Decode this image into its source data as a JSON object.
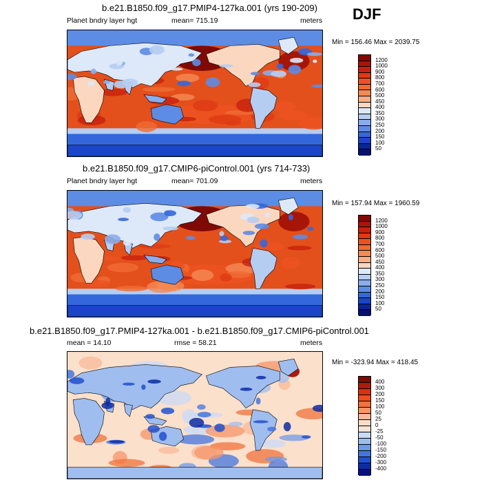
{
  "season": "DJF",
  "panels": [
    {
      "title": "b.e21.B1850.f09_g17.PMIP4-127ka.001 (yrs 190-209)",
      "left_label": "Planet bndry layer hgt",
      "center_label": "mean= 715.19",
      "right_label": "meters",
      "minmax": "Min = 156.46 Max = 2039.75",
      "palette": "abs",
      "levels": [
        "1200",
        "1000",
        "900",
        "800",
        "700",
        "600",
        "500",
        "450",
        "400",
        "350",
        "300",
        "250",
        "200",
        "150",
        "100",
        "50"
      ]
    },
    {
      "title": "b.e21.B1850.f09_g17.CMIP6-piControl.001 (yrs 714-733)",
      "left_label": "Planet bndry layer hgt",
      "center_label": "mean= 701.09",
      "right_label": "meters",
      "minmax": "Min = 157.94 Max = 1960.59",
      "palette": "abs",
      "levels": [
        "1200",
        "1000",
        "900",
        "800",
        "700",
        "600",
        "500",
        "450",
        "400",
        "350",
        "300",
        "250",
        "200",
        "150",
        "100",
        "50"
      ]
    },
    {
      "title": "b.e21.B1850.f09_g17.PMIP4-127ka.001 - b.e21.B1850.f09_g17.CMIP6-piControl.001",
      "left_label": "mean =  14.10",
      "center_label": "rmse =  58.21",
      "right_label": "meters",
      "minmax": "Min = -323.94 Max = 418.45",
      "palette": "diff",
      "levels": [
        "400",
        "300",
        "200",
        "150",
        "100",
        "50",
        "25",
        "0",
        "-25",
        "-50",
        "-100",
        "-150",
        "-200",
        "-300",
        "-400"
      ]
    }
  ],
  "colors": {
    "abs": [
      "#7f0a05",
      "#a61507",
      "#c8200c",
      "#de3a14",
      "#ec5220",
      "#f06b35",
      "#f58a55",
      "#f9ad86",
      "#fbd7bf",
      "#dde9f8",
      "#b6cdf2",
      "#8aadeb",
      "#5d8ce4",
      "#3467db",
      "#1a45c9",
      "#0a2499",
      "#06126b"
    ],
    "diff": [
      "#7f0a05",
      "#b31908",
      "#d8310f",
      "#ea4f1e",
      "#f0733c",
      "#f5956a",
      "#f9b99a",
      "#fcdcc6",
      "#f2e4d6",
      "#c9dbf5",
      "#9fbdef",
      "#7099e8",
      "#4475de",
      "#2150ce",
      "#0c2ca6",
      "#05147a"
    ],
    "ocean_abs": "#e3501c",
    "ocean_diff": "#fbe0cc",
    "coast": "#000000"
  }
}
